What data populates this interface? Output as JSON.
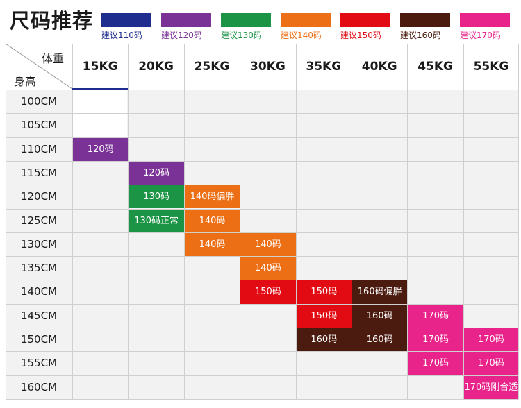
{
  "title": "尺码推荐",
  "legend": [
    {
      "label": "建议110码",
      "color": "#1f2d8f"
    },
    {
      "label": "建议120码",
      "color": "#7a3296"
    },
    {
      "label": "建议130码",
      "color": "#1c9445"
    },
    {
      "label": "建议140码",
      "color": "#ec6f16"
    },
    {
      "label": "建议150码",
      "color": "#e20b13"
    },
    {
      "label": "建议160码",
      "color": "#4b1b0f"
    },
    {
      "label": "建议170码",
      "color": "#e8248b"
    }
  ],
  "table": {
    "corner_weight": "体重",
    "corner_height": "身高",
    "weights": [
      "15KG",
      "20KG",
      "25KG",
      "30KG",
      "35KG",
      "40KG",
      "45KG",
      "55KG"
    ],
    "heights": [
      "100CM",
      "105CM",
      "110CM",
      "115CM",
      "120CM",
      "125CM",
      "130CM",
      "135CM",
      "140CM",
      "145CM",
      "150CM",
      "155CM",
      "160CM"
    ],
    "cells": [
      {
        "row": 2,
        "col": 0,
        "text": "120码",
        "color": "#7a3296"
      },
      {
        "row": 3,
        "col": 1,
        "text": "120码",
        "color": "#7a3296"
      },
      {
        "row": 4,
        "col": 1,
        "text": "130码",
        "color": "#1c9445"
      },
      {
        "row": 4,
        "col": 2,
        "text": "140码偏胖",
        "color": "#ec6f16"
      },
      {
        "row": 5,
        "col": 1,
        "text": "130码正常",
        "color": "#1c9445"
      },
      {
        "row": 5,
        "col": 2,
        "text": "140码",
        "color": "#ec6f16"
      },
      {
        "row": 6,
        "col": 2,
        "text": "140码",
        "color": "#ec6f16"
      },
      {
        "row": 6,
        "col": 3,
        "text": "140码",
        "color": "#ec6f16"
      },
      {
        "row": 7,
        "col": 3,
        "text": "140码",
        "color": "#ec6f16"
      },
      {
        "row": 8,
        "col": 3,
        "text": "150码",
        "color": "#e20b13"
      },
      {
        "row": 8,
        "col": 4,
        "text": "150码",
        "color": "#e20b13"
      },
      {
        "row": 8,
        "col": 5,
        "text": "160码偏胖",
        "color": "#4b1b0f"
      },
      {
        "row": 9,
        "col": 4,
        "text": "150码",
        "color": "#e20b13"
      },
      {
        "row": 9,
        "col": 5,
        "text": "160码",
        "color": "#4b1b0f"
      },
      {
        "row": 9,
        "col": 6,
        "text": "170码",
        "color": "#e8248b"
      },
      {
        "row": 10,
        "col": 4,
        "text": "160码",
        "color": "#4b1b0f"
      },
      {
        "row": 10,
        "col": 5,
        "text": "160码",
        "color": "#4b1b0f"
      },
      {
        "row": 10,
        "col": 6,
        "text": "170码",
        "color": "#e8248b"
      },
      {
        "row": 10,
        "col": 7,
        "text": "170码",
        "color": "#e8248b"
      },
      {
        "row": 11,
        "col": 6,
        "text": "170码",
        "color": "#e8248b"
      },
      {
        "row": 11,
        "col": 7,
        "text": "170码",
        "color": "#e8248b"
      },
      {
        "row": 12,
        "col": 7,
        "text": "170码刚合适",
        "color": "#e8248b"
      }
    ]
  }
}
